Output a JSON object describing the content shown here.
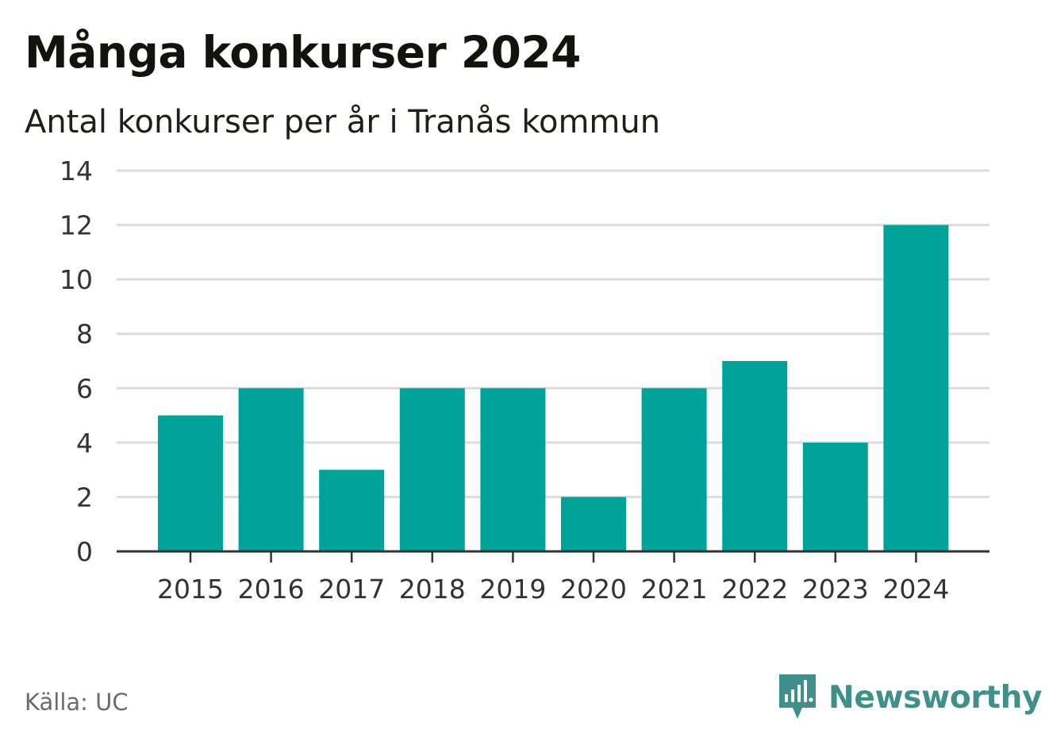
{
  "header": {
    "title": "Många konkurser 2024",
    "subtitle": "Antal konkurser per år i Tranås kommun"
  },
  "footer": {
    "source": "Källa: UC",
    "brand": "Newsworthy",
    "brand_icon": "newsworthy-logo-icon"
  },
  "colors": {
    "bar": "#00a39a",
    "grid": "#dcdcdc",
    "axis": "#333333",
    "brand": "#3f8f8a"
  },
  "chart_data": {
    "type": "bar",
    "categories": [
      "2015",
      "2016",
      "2017",
      "2018",
      "2019",
      "2020",
      "2021",
      "2022",
      "2023",
      "2024"
    ],
    "values": [
      5,
      6,
      3,
      6,
      6,
      2,
      6,
      7,
      4,
      12
    ],
    "title": "Många konkurser 2024",
    "subtitle": "Antal konkurser per år i Tranås kommun",
    "xlabel": "",
    "ylabel": "",
    "ylim": [
      0,
      14
    ],
    "yticks": [
      "0",
      "2",
      "4",
      "6",
      "8",
      "10",
      "12",
      "14"
    ],
    "grid": true,
    "legend": "none"
  }
}
